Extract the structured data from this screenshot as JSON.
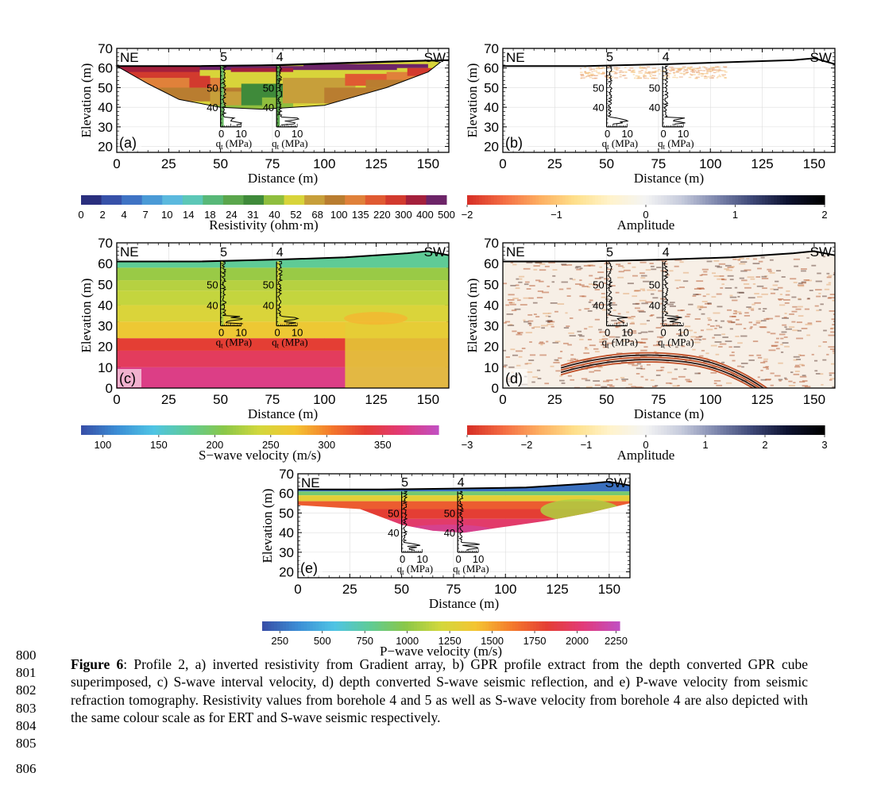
{
  "panels": [
    {
      "id": "a",
      "letter": "(a)",
      "ne": "NE",
      "sw": "SW",
      "bh5": "5",
      "bh4": "4",
      "yticks": [
        "70",
        "60",
        "50",
        "40",
        "30",
        "20"
      ],
      "xticks": [
        "0",
        "25",
        "50",
        "75",
        "100",
        "125",
        "150"
      ],
      "inset_y": [
        "50",
        "40"
      ],
      "inset_x": [
        "0",
        "10"
      ],
      "inset_label": "q",
      "inset_sub": "t",
      "inset_unit": " (MPa)",
      "ylabel": "Elevation (m)",
      "xlabel": "Distance (m)"
    },
    {
      "id": "b",
      "letter": "(b)",
      "ne": "NE",
      "sw": "SW",
      "bh5": "5",
      "bh4": "4",
      "yticks": [
        "70",
        "60",
        "50",
        "40",
        "30",
        "20"
      ],
      "xticks": [
        "0",
        "25",
        "50",
        "75",
        "100",
        "125",
        "150"
      ],
      "inset_y": [
        "50",
        "40"
      ],
      "inset_x": [
        "0",
        "10"
      ],
      "inset_label": "q",
      "inset_sub": "t",
      "inset_unit": " (MPa)",
      "ylabel": "Elevation (m)",
      "xlabel": "Distance (m)"
    },
    {
      "id": "c",
      "letter": "(c)",
      "ne": "NE",
      "sw": "SW",
      "bh5": "5",
      "bh4": "4",
      "yticks": [
        "70",
        "60",
        "50",
        "40",
        "30",
        "20",
        "10",
        "0"
      ],
      "xticks": [
        "0",
        "25",
        "50",
        "75",
        "100",
        "125",
        "150"
      ],
      "inset_y": [
        "50",
        "40"
      ],
      "inset_x": [
        "0",
        "10"
      ],
      "inset_label": "q",
      "inset_sub": "t",
      "inset_unit": " (MPa)",
      "ylabel": "Elevation (m)",
      "xlabel": "Distance (m)"
    },
    {
      "id": "d",
      "letter": "(d)",
      "ne": "NE",
      "sw": "SW",
      "bh5": "5",
      "bh4": "4",
      "yticks": [
        "70",
        "60",
        "50",
        "40",
        "30",
        "20",
        "10",
        "0"
      ],
      "xticks": [
        "0",
        "25",
        "50",
        "75",
        "100",
        "125",
        "150"
      ],
      "inset_y": [
        "50",
        "40"
      ],
      "inset_x": [
        "0",
        "10"
      ],
      "inset_label": "q",
      "inset_sub": "t",
      "inset_unit": " (MPa)",
      "ylabel": "Elevation (m)",
      "xlabel": "Distance (m)"
    },
    {
      "id": "e",
      "letter": "(e)",
      "ne": "NE",
      "sw": "SW",
      "bh5": "5",
      "bh4": "4",
      "yticks": [
        "70",
        "60",
        "50",
        "40",
        "30",
        "20"
      ],
      "xticks": [
        "0",
        "25",
        "50",
        "75",
        "100",
        "125",
        "150"
      ],
      "inset_y": [
        "50",
        "40"
      ],
      "inset_x": [
        "0",
        "10"
      ],
      "inset_label": "q",
      "inset_sub": "t",
      "inset_unit": " (MPa)",
      "ylabel": "Elevation (m)",
      "xlabel": "Distance (m)"
    }
  ],
  "colorbars": {
    "resistivity": {
      "label": "Resistivity (ohm·m)",
      "ticks": [
        "0",
        "2",
        "4",
        "7",
        "10",
        "14",
        "18",
        "24",
        "31",
        "40",
        "52",
        "68",
        "100",
        "135",
        "220",
        "300",
        "400",
        "500"
      ],
      "colors": [
        "#2a2f7e",
        "#3751a8",
        "#3f73c4",
        "#4a9ad6",
        "#5bb9de",
        "#5cc7b7",
        "#58b878",
        "#5aa64c",
        "#3f8a3a",
        "#8fbe3e",
        "#d8d43a",
        "#c79f3a",
        "#b97d30",
        "#e0813a",
        "#e05a32",
        "#d23a2e",
        "#a4203c",
        "#6d2468"
      ]
    },
    "gpr_b": {
      "label": "Amplitude",
      "ticks": [
        "−2",
        "−1",
        "0",
        "1",
        "2"
      ],
      "colors": [
        "#d73027",
        "#f46d43",
        "#fdae61",
        "#fee08b",
        "#fff3cc",
        "#f4f4f4",
        "#c6cbdc",
        "#7d86ad",
        "#3d4776",
        "#0d1230",
        "#000000"
      ]
    },
    "swave": {
      "label": "S−wave velocity (m/s)",
      "ticks": [
        "100",
        "150",
        "200",
        "250",
        "300",
        "350"
      ],
      "colors": [
        "#3850a8",
        "#3c8fd6",
        "#4fc4e4",
        "#5fcb96",
        "#8ac748",
        "#d3d83c",
        "#f4c432",
        "#f47a2c",
        "#e43e34",
        "#e23a78",
        "#c24fc0"
      ]
    },
    "gpr_d": {
      "label": "Amplitude",
      "ticks": [
        "−3",
        "−2",
        "−1",
        "0",
        "1",
        "2",
        "3"
      ],
      "colors": [
        "#d73027",
        "#f46d43",
        "#fdae61",
        "#fee08b",
        "#fff3cc",
        "#f4f4f4",
        "#c6cbdc",
        "#7d86ad",
        "#3d4776",
        "#0d1230",
        "#000000"
      ]
    },
    "pwave": {
      "label": "P−wave velocity (m/s)",
      "ticks": [
        "250",
        "500",
        "750",
        "1000",
        "1250",
        "1500",
        "1750",
        "2000",
        "2250"
      ],
      "colors": [
        "#3850a8",
        "#3c8fd6",
        "#4fc4e4",
        "#5fcb96",
        "#8ac748",
        "#d3d83c",
        "#f4c432",
        "#f47a2c",
        "#e43e34",
        "#e23a78",
        "#c24fc0"
      ]
    }
  },
  "caption": {
    "label": "Figure 6",
    "text": ": Profile 2, a) inverted resistivity from Gradient array, b) GPR profile extract from the depth converted GPR cube superimposed, c) S-wave interval velocity, d) depth converted S-wave seismic reflection, and e) P-wave velocity from seismic refraction tomography. Resistivity values from borehole 4 and 5 as well as S-wave velocity from borehole 4 are also depicted with the same colour scale as for ERT and S-wave seismic respectively."
  },
  "line_numbers": [
    "800",
    "801",
    "802",
    "803",
    "804",
    "805",
    "806"
  ]
}
